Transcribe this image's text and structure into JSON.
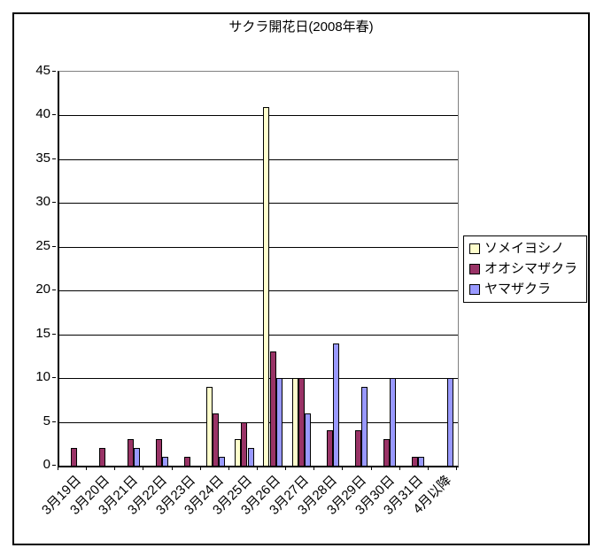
{
  "title": "サクラ開花日(2008年春)",
  "chart_data": {
    "type": "bar",
    "title": "サクラ開花日(2008年春)",
    "categories": [
      "3月19日",
      "3月20日",
      "3月21日",
      "3月22日",
      "3月23日",
      "3月24日",
      "3月25日",
      "3月26日",
      "3月27日",
      "3月28日",
      "3月29日",
      "3月30日",
      "3月31日",
      "4月以降"
    ],
    "series": [
      {
        "name": "ソメイヨシノ",
        "color": "#FFFFCC",
        "values": [
          0,
          0,
          0,
          0,
          0,
          9,
          3,
          41,
          10,
          0,
          0,
          0,
          0,
          0
        ]
      },
      {
        "name": "オオシマザクラ",
        "color": "#993366",
        "values": [
          2,
          2,
          3,
          3,
          1,
          6,
          5,
          13,
          10,
          4,
          4,
          3,
          1,
          0
        ]
      },
      {
        "name": "ヤマザクラ",
        "color": "#9999FF",
        "values": [
          0,
          0,
          2,
          1,
          0,
          1,
          2,
          10,
          6,
          14,
          9,
          10,
          1,
          10
        ]
      }
    ],
    "xlabel": "",
    "ylabel": "",
    "ylim": [
      0,
      45
    ],
    "ytick_interval": 5,
    "yticks": [
      0,
      5,
      10,
      15,
      20,
      25,
      30,
      35,
      40,
      45
    ],
    "grid": true,
    "legend_position": "right"
  },
  "colors": {
    "axis": "#000000",
    "plot_border": "#808080",
    "background": "#FFFFFF"
  }
}
